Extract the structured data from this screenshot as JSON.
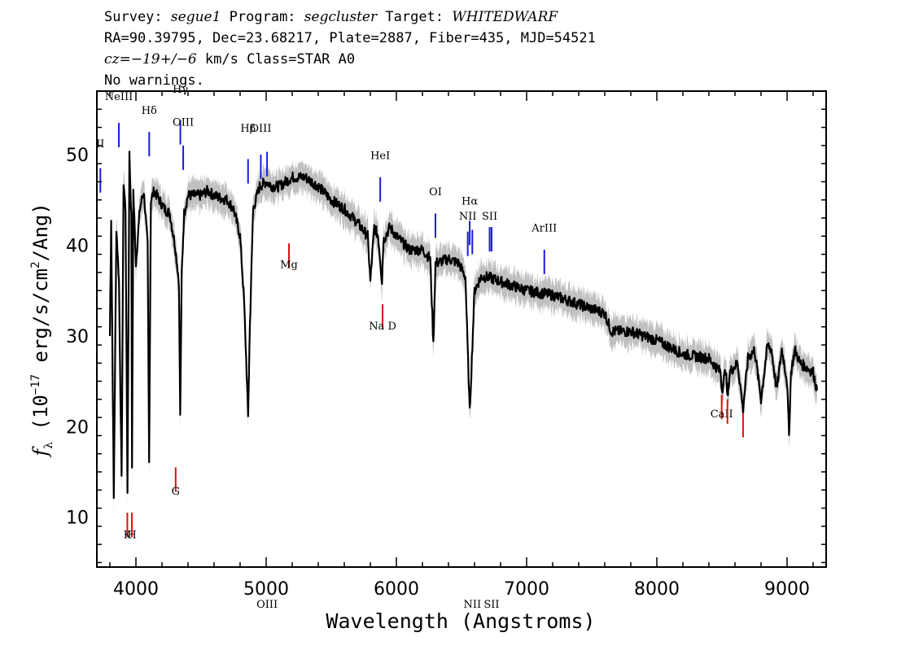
{
  "header": {
    "survey_label": "Survey:",
    "survey": "segue1",
    "program_label": "Program:",
    "program": "segcluster",
    "target_label": "Target:",
    "target": "WHITEDWARF",
    "line2": "RA=90.39795, Dec=23.68217, Plate=2887, Fiber=435, MJD=54521",
    "cz_label": "cz=",
    "cz_value": "−19+/−6",
    "cz_rest": " km/s Class=STAR A0",
    "line4": "No warnings."
  },
  "chart_data": {
    "type": "line",
    "xlabel": "Wavelength (Angstroms)",
    "ylabel": "fλ (10⁻¹⁷ erg/s/cm²/Ang)",
    "xlim": [
      3700,
      9300
    ],
    "ylim": [
      4.5,
      57
    ],
    "xticks": [
      4000,
      5000,
      6000,
      7000,
      8000,
      9000
    ],
    "yticks": [
      10,
      20,
      30,
      40,
      50
    ],
    "grid": false,
    "series": [
      {
        "color": "#000000",
        "error_band_color": "#c0c0c0",
        "x": [
          3800,
          3810,
          3830,
          3850,
          3870,
          3890,
          3905,
          3920,
          3935,
          3950,
          3965,
          3970,
          3980,
          4000,
          4030,
          4060,
          4090,
          4101,
          4115,
          4140,
          4180,
          4220,
          4260,
          4300,
          4330,
          4340,
          4352,
          4370,
          4400,
          4450,
          4500,
          4550,
          4600,
          4650,
          4700,
          4750,
          4800,
          4830,
          4850,
          4861,
          4875,
          4900,
          4950,
          5000,
          5050,
          5100,
          5200,
          5300,
          5400,
          5500,
          5600,
          5700,
          5780,
          5800,
          5830,
          5860,
          5890,
          5900,
          5950,
          6000,
          6100,
          6200,
          6260,
          6284,
          6300,
          6400,
          6480,
          6530,
          6563,
          6600,
          6650,
          6700,
          6800,
          7000,
          7200,
          7400,
          7600,
          7650,
          7800,
          8000,
          8200,
          8400,
          8490,
          8500,
          8530,
          8542,
          8560,
          8620,
          8662,
          8700,
          8750,
          8800,
          8850,
          8880,
          8920,
          8960,
          9000,
          9015,
          9030,
          9060,
          9100,
          9150,
          9200,
          9230
        ],
        "y": [
          30,
          43,
          12,
          42,
          36,
          14,
          47,
          44,
          13,
          50,
          43,
          15,
          46,
          38,
          44,
          46,
          40,
          16,
          45,
          46,
          45,
          44,
          43.5,
          40,
          36,
          21,
          37,
          43.5,
          45.5,
          45.5,
          45.5,
          46,
          45.5,
          45.2,
          45,
          44,
          41,
          34,
          26,
          21,
          31,
          44,
          46.5,
          47,
          46.5,
          46.5,
          47.5,
          47.5,
          46.5,
          45,
          44,
          42.5,
          41,
          36,
          42,
          41,
          36,
          40.5,
          42,
          41,
          39.5,
          39.5,
          38.5,
          29,
          38,
          38.5,
          38,
          36.5,
          21.5,
          35,
          36.5,
          36.5,
          36,
          35,
          34.5,
          33.5,
          32.5,
          30.5,
          30.5,
          29.5,
          28,
          27.5,
          26,
          24,
          26.5,
          23,
          26,
          27,
          22,
          27.5,
          28.5,
          23,
          29,
          28.5,
          24,
          28.5,
          25,
          19,
          26,
          28.5,
          27,
          26.5,
          26,
          24
        ]
      }
    ],
    "line_annotations": [
      {
        "label": "NeIII",
        "x": 3869,
        "y": 53.5,
        "color": "#1a1adf",
        "label_y": 56
      },
      {
        "label": "Hδ",
        "x": 4102,
        "y": 52.5,
        "color": "#1a1adf",
        "label_y": 54.5
      },
      {
        "label": "Hγ",
        "x": 4341,
        "y": 53.8,
        "color": "#1a1adf",
        "label_y": 56.8
      },
      {
        "label": "OIII",
        "x": 4363,
        "y": 51,
        "color": "#1a1adf",
        "label_y": 53.2
      },
      {
        "label": "Hβ",
        "x": 4861,
        "y": 49.5,
        "color": "#1a1adf",
        "label_y": 52.5
      },
      {
        "label": "OIII",
        "x": 4959,
        "y": 50,
        "color": "#1a1adf",
        "label_y": 52.5
      },
      {
        "label": "OIII",
        "x": 5007,
        "y": 50.3,
        "color": "#1a1adf",
        "label_y": 0
      },
      {
        "label": "HeI",
        "x": 5876,
        "y": 47.5,
        "color": "#1a1adf",
        "label_y": 49.5
      },
      {
        "label": "OI",
        "x": 6300,
        "y": 43.5,
        "color": "#1a1adf",
        "label_y": 45.5
      },
      {
        "label": "NII",
        "x": 6548,
        "y": 41.5,
        "color": "#1a1adf",
        "label_y": 42.8
      },
      {
        "label": "Hα",
        "x": 6563,
        "y": 42.7,
        "color": "#1a1adf",
        "label_y": 44.5
      },
      {
        "label": "NII",
        "x": 6583,
        "y": 41.7,
        "color": "#1a1adf",
        "label_y": 0
      },
      {
        "label": "SII",
        "x": 6716,
        "y": 42,
        "color": "#1a1adf",
        "label_y": 42.8
      },
      {
        "label": "SII",
        "x": 6731,
        "y": 42,
        "color": "#1a1adf",
        "label_y": 0
      },
      {
        "label": "ArIII",
        "x": 7136,
        "y": 39.5,
        "color": "#1a1adf",
        "label_y": 41.5
      },
      {
        "label": "II",
        "x": 3727,
        "y": 48.5,
        "color": "#1a1adf",
        "label_y": 50.8
      },
      {
        "label": "K",
        "x": 3934,
        "y": 10.5,
        "color": "#e01010",
        "label_y": 7.7
      },
      {
        "label": "H",
        "x": 3969,
        "y": 10.5,
        "color": "#e01010",
        "label_y": 7.7
      },
      {
        "label": "G",
        "x": 4305,
        "y": 15.5,
        "color": "#e01010",
        "label_y": 12.5
      },
      {
        "label": "Mg",
        "x": 5175,
        "y": 40.2,
        "color": "#e01010",
        "label_y": 37.5
      },
      {
        "label": "Na D",
        "x": 5894,
        "y": 33.5,
        "color": "#e01010",
        "label_y": 30.7
      },
      {
        "label": "CaII",
        "x": 8498,
        "y": 23.5,
        "color": "#e01010",
        "label_y": 21
      },
      {
        "label": "",
        "x": 8542,
        "y": 23,
        "color": "#e01010",
        "label_y": 0
      },
      {
        "label": "",
        "x": 8662,
        "y": 21.5,
        "color": "#e01010",
        "label_y": 0
      }
    ]
  }
}
